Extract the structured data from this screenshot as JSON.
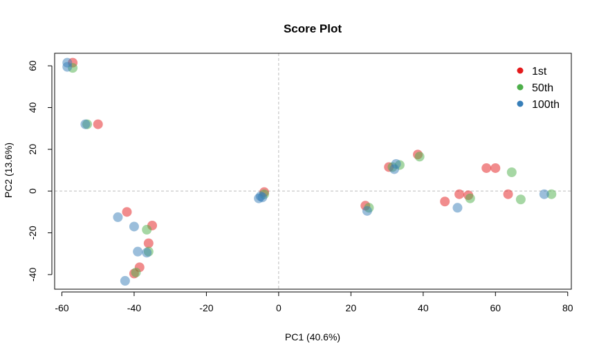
{
  "chart_data": {
    "type": "scatter",
    "title": "Score Plot",
    "xlabel": "PC1 (40.6%)",
    "ylabel": "PC2 (13.6%)",
    "xlim": [
      -62,
      81
    ],
    "ylim": [
      -47,
      66
    ],
    "xticks": [
      -60,
      -40,
      -20,
      0,
      20,
      40,
      60,
      80
    ],
    "yticks": [
      -40,
      -20,
      0,
      20,
      40,
      60
    ],
    "grid": false,
    "reference_lines": {
      "x": 0,
      "y": 0,
      "style": "dashed"
    },
    "legend_position": "top-right",
    "series": [
      {
        "name": "1st",
        "color": "#E41A1C",
        "points": [
          [
            -57,
            61.5
          ],
          [
            -50,
            32
          ],
          [
            -42,
            -10
          ],
          [
            -35,
            -16.5
          ],
          [
            -36,
            -25
          ],
          [
            -38.5,
            -36.5
          ],
          [
            -40,
            -39.5
          ],
          [
            -4,
            -0.5
          ],
          [
            24,
            -7
          ],
          [
            30.5,
            11.5
          ],
          [
            38.5,
            17.5
          ],
          [
            46,
            -5
          ],
          [
            50,
            -1.5
          ],
          [
            52.5,
            -2
          ],
          [
            57.5,
            11
          ],
          [
            60,
            11
          ],
          [
            63.5,
            -1.5
          ]
        ]
      },
      {
        "name": "50th",
        "color": "#4DAF4A",
        "points": [
          [
            -57,
            59
          ],
          [
            -53,
            32
          ],
          [
            -36.5,
            -18.5
          ],
          [
            -36,
            -29
          ],
          [
            -39.5,
            -39
          ],
          [
            -4,
            -1.5
          ],
          [
            25,
            -8
          ],
          [
            31.5,
            11.5
          ],
          [
            33.5,
            12.5
          ],
          [
            39,
            16.5
          ],
          [
            53,
            -3.5
          ],
          [
            64.5,
            9
          ],
          [
            67,
            -4
          ],
          [
            75.5,
            -1.5
          ]
        ]
      },
      {
        "name": "100th",
        "color": "#377EB8",
        "points": [
          [
            -58.5,
            61.5
          ],
          [
            -58.5,
            59.5
          ],
          [
            -53.5,
            32
          ],
          [
            -44.5,
            -12.5
          ],
          [
            -40,
            -17
          ],
          [
            -39,
            -29
          ],
          [
            -36.5,
            -29.5
          ],
          [
            -42.5,
            -43
          ],
          [
            -5,
            -2.5
          ],
          [
            -5.5,
            -3.5
          ],
          [
            -4.5,
            -3
          ],
          [
            24.5,
            -9.5
          ],
          [
            32,
            10.5
          ],
          [
            32.5,
            13
          ],
          [
            49.5,
            -8
          ],
          [
            73.5,
            -1.5
          ]
        ]
      }
    ]
  }
}
